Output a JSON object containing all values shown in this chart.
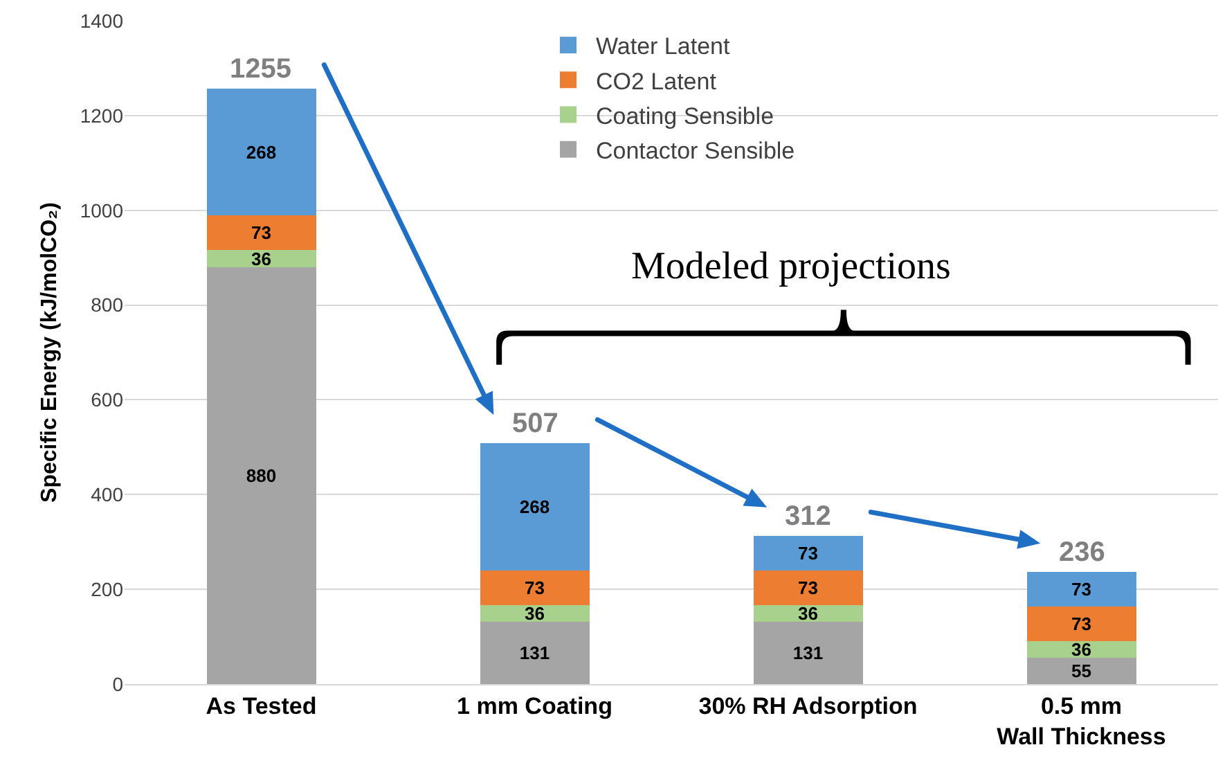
{
  "chart_data": {
    "type": "bar",
    "stacked": true,
    "ylabel": "Specific Energy (kJ/molCO₂)",
    "categories": [
      "As Tested",
      "1 mm Coating",
      "30% RH Adsorption",
      "0.5 mm Wall Thickness"
    ],
    "series": [
      {
        "name": "Contactor Sensible",
        "color": "#a5a5a5",
        "values": [
          880,
          131,
          131,
          55
        ]
      },
      {
        "name": "Coating Sensible",
        "color": "#a9d18e",
        "values": [
          36,
          36,
          36,
          36
        ]
      },
      {
        "name": "CO2 Latent",
        "color": "#ed7d31",
        "values": [
          73,
          73,
          73,
          73
        ]
      },
      {
        "name": "Water Latent",
        "color": "#5b9bd5",
        "values": [
          268,
          268,
          73,
          73
        ]
      }
    ],
    "data_labels": true,
    "totals": [
      "1255",
      "507",
      "312",
      "236"
    ],
    "ylim": [
      0,
      1400
    ],
    "yticks": [
      0,
      200,
      400,
      600,
      800,
      1000,
      1200,
      1400
    ],
    "grid": "y",
    "legend": "top",
    "annotations": [
      "Modeled projections"
    ]
  }
}
